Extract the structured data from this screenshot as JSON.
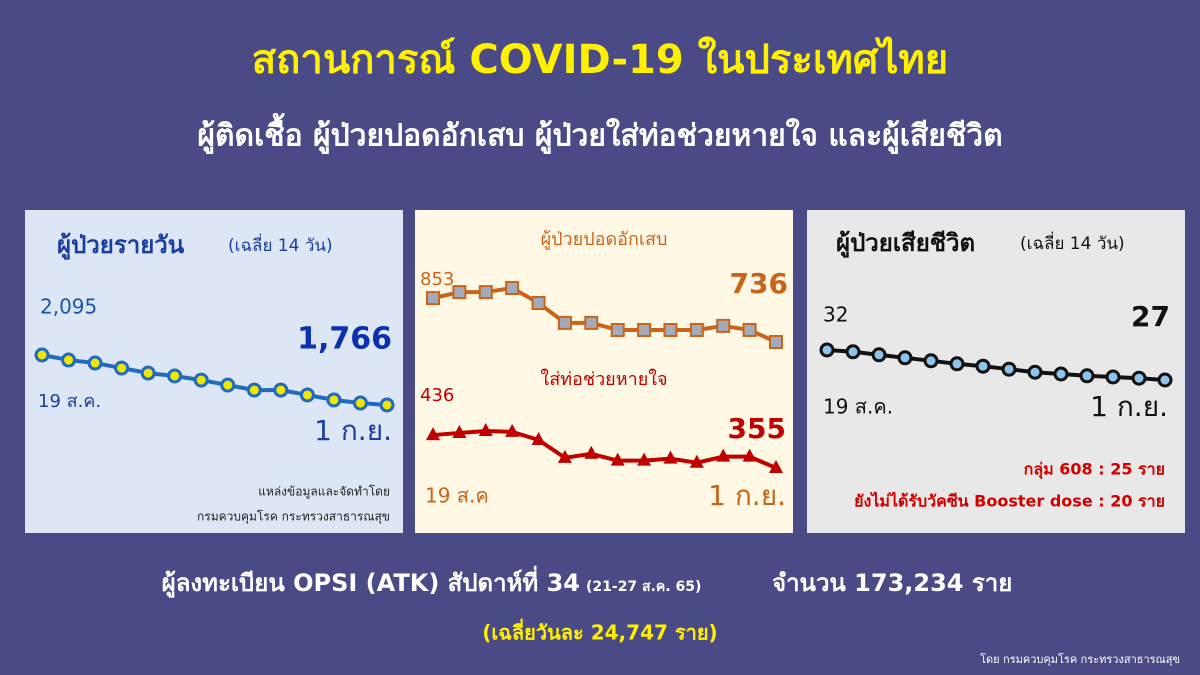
{
  "header": {
    "title": "สถานการณ์ COVID-19 ในประเทศไทย",
    "subtitle": "ผู้ติดเชื้อ ผู้ป่วยปอดอักเสบ ผู้ป่วยใส่ท่อช่วยหายใจ และผู้เสียชีวิต"
  },
  "chart_data": [
    {
      "type": "line",
      "title": "ผู้ป่วยรายวัน",
      "subtitle": "(เฉลี่ย 14 วัน)",
      "categories": [
        "19 ส.ค.",
        null,
        null,
        null,
        null,
        null,
        null,
        null,
        null,
        null,
        null,
        null,
        null,
        "1 ก.ย."
      ],
      "series": [
        {
          "color": "#1f6bbf",
          "marker": "circle",
          "marker_color": "#f2e600",
          "values": [
            2095,
            2062,
            2042,
            2009,
            1976,
            1957,
            1930,
            1897,
            1864,
            1864,
            1832,
            1799,
            1779,
            1766
          ],
          "value_labels": [
            "2,095",
            null,
            null,
            null,
            null,
            null,
            null,
            null,
            null,
            null,
            null,
            null,
            null,
            "1,766"
          ]
        }
      ],
      "notes": [
        "แหล่งข้อมูลและจัดทำโดย",
        "กรมควบคุมโรค กระทรวงสาธารณสุข"
      ]
    },
    {
      "type": "line",
      "categories": [
        "19 ส.ค",
        null,
        null,
        null,
        null,
        null,
        null,
        null,
        null,
        null,
        null,
        null,
        null,
        "1 ก.ย."
      ],
      "series": [
        {
          "name": "ผู้ป่วยปอดอักเสบ",
          "color": "#c8651b",
          "marker": "square",
          "marker_color": "#a3abbb",
          "values": [
            853,
            869,
            869,
            880,
            840,
            787,
            787,
            768,
            768,
            768,
            768,
            779,
            768,
            736
          ],
          "value_labels": [
            "853",
            null,
            null,
            null,
            null,
            null,
            null,
            null,
            null,
            null,
            null,
            null,
            null,
            "736"
          ]
        },
        {
          "name": "ใส่ท่อช่วยหายใจ",
          "color": "#c00000",
          "marker": "triangle",
          "marker_color": "#c00000",
          "values": [
            436,
            441,
            446,
            444,
            424,
            380,
            390,
            373,
            373,
            378,
            368,
            383,
            383,
            355
          ],
          "value_labels": [
            "436",
            null,
            null,
            null,
            null,
            null,
            null,
            null,
            null,
            null,
            null,
            null,
            null,
            "355"
          ]
        }
      ]
    },
    {
      "type": "line",
      "title": "ผู้ป่วยเสียชีวิต",
      "subtitle": "(เฉลี่ย 14 วัน)",
      "categories": [
        "19 ส.ค.",
        null,
        null,
        null,
        null,
        null,
        null,
        null,
        null,
        null,
        null,
        null,
        null,
        "1 ก.ย."
      ],
      "series": [
        {
          "color": "#111111",
          "marker": "circle",
          "marker_color": "#8cc4ec",
          "values": [
            32,
            31.7,
            31.2,
            30.7,
            30.2,
            29.7,
            29.3,
            28.8,
            28.3,
            28,
            27.7,
            27.5,
            27.3,
            27
          ],
          "value_labels": [
            "32",
            null,
            null,
            null,
            null,
            null,
            null,
            null,
            null,
            null,
            null,
            null,
            null,
            "27"
          ]
        }
      ],
      "notes": [
        "กลุ่ม 608 : 25 ราย",
        "ยังไม่ได้รับวัคซีน Booster dose : 20 ราย"
      ]
    }
  ],
  "footer": {
    "registration": "ผู้ลงทะเบียน OPSI (ATK) สัปดาห์ที่ 34",
    "period": "(21-27 ส.ค. 65)",
    "total": "จำนวน 173,234 ราย",
    "average": "(เฉลี่ยวันละ 24,747 ราย)",
    "credit": "โดย กรมควบคุมโรค กระทรวงสาธารณสุข"
  }
}
